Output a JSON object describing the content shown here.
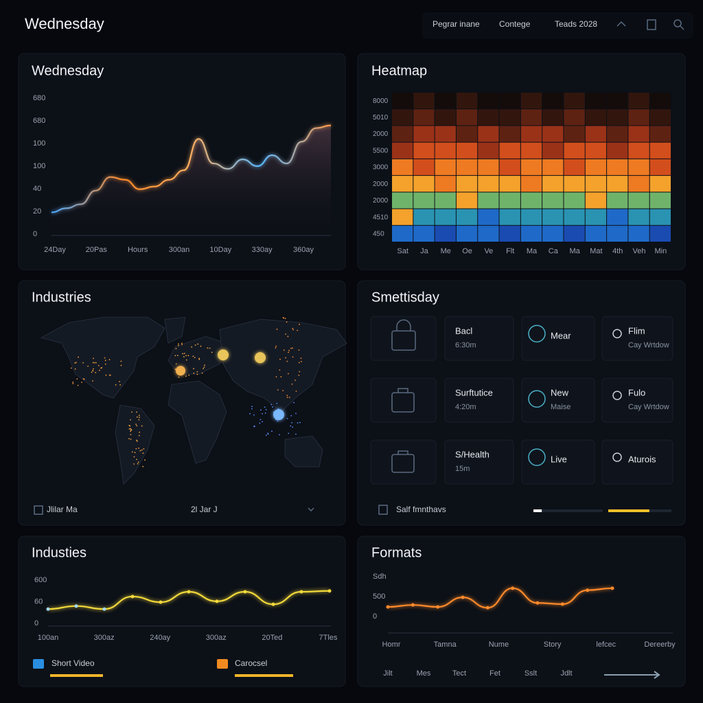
{
  "header": {
    "title": "Wednesday",
    "nav": [
      "Pegrar inane",
      "Contege",
      "Teads 2028"
    ]
  },
  "trend": {
    "type": "area",
    "title": "Wednesday",
    "y_labels": [
      "680",
      "680",
      "100",
      "100",
      "40",
      "20",
      "0"
    ],
    "x_labels": [
      "24Day",
      "20Pas",
      "Hours",
      "300an",
      "10Day",
      "330ay",
      "360ay"
    ],
    "ylim": [
      0,
      100
    ],
    "colors": [
      "#4aa8ff",
      "#ff8a2a",
      "#ffb060",
      "#5ab8ff",
      "#ff9a4a"
    ],
    "values": [
      16,
      19,
      22,
      32,
      42,
      40,
      33,
      35,
      40,
      47,
      70,
      52,
      48,
      55,
      50,
      58,
      52,
      68,
      78,
      80
    ]
  },
  "heatmap": {
    "type": "heatmap",
    "title": "Heatmap",
    "y_labels": [
      "8000",
      "5010",
      "2000",
      "5500",
      "3000",
      "2000",
      "2000",
      "4510",
      "450"
    ],
    "x_labels": [
      "Sat",
      "Ja",
      "Me",
      "Oe",
      "Ve",
      "Flt",
      "Ma",
      "Ca",
      "Ma",
      "Mat",
      "4th",
      "Veh",
      "Min"
    ],
    "colors": [
      "#140c0a",
      "#32160e",
      "#5e2212",
      "#9a3218",
      "#d24e1c",
      "#ee7a22",
      "#f4a22c",
      "#6fb36b",
      "#2a93b2",
      "#1f6ac8",
      "#1a4bb0"
    ],
    "values": [
      [
        0,
        1,
        0,
        1,
        0,
        0,
        1,
        0,
        1,
        0,
        0,
        1,
        0
      ],
      [
        1,
        2,
        1,
        2,
        1,
        1,
        2,
        1,
        2,
        1,
        1,
        2,
        1
      ],
      [
        2,
        3,
        3,
        2,
        3,
        2,
        3,
        3,
        2,
        3,
        2,
        3,
        2
      ],
      [
        3,
        4,
        4,
        4,
        3,
        4,
        4,
        3,
        4,
        4,
        3,
        4,
        4
      ],
      [
        5,
        4,
        5,
        5,
        5,
        4,
        5,
        5,
        4,
        5,
        5,
        5,
        4
      ],
      [
        6,
        6,
        5,
        6,
        6,
        6,
        5,
        6,
        6,
        6,
        6,
        5,
        6
      ],
      [
        7,
        7,
        7,
        6,
        7,
        7,
        7,
        7,
        7,
        6,
        7,
        7,
        7
      ],
      [
        6,
        8,
        8,
        8,
        9,
        8,
        8,
        8,
        8,
        8,
        9,
        8,
        8
      ],
      [
        9,
        9,
        10,
        9,
        9,
        10,
        9,
        9,
        10,
        9,
        9,
        9,
        10
      ]
    ]
  },
  "map": {
    "title": "Industries",
    "footer": [
      "Jlilar Ma",
      "2l Jar J"
    ]
  },
  "tiles": {
    "title": "Smettisday",
    "items": [
      {
        "label": "Bacl",
        "sub": "6:30m"
      },
      {
        "label": "Mear"
      },
      {
        "label": "Flim",
        "sub": "Cay Wrtdow"
      },
      {
        "label": "Surftutice",
        "sub": "4:20m"
      },
      {
        "label": "New",
        "sub": "Maise"
      },
      {
        "label": "Fulo",
        "sub": "Cay Wrtdow"
      },
      {
        "label": "S/Health",
        "sub": "15m"
      },
      {
        "label": "Live"
      },
      {
        "label": "Aturois"
      }
    ],
    "footer": "Salf fmnthavs",
    "progress": [
      12,
      65
    ]
  },
  "industies": {
    "type": "line",
    "title": "Industies",
    "y_labels": [
      "600",
      "60",
      "0"
    ],
    "x_labels": [
      "100an",
      "300az",
      "240ay",
      "300az",
      "20Ted",
      "7Tles"
    ],
    "ylim": [
      0,
      100
    ],
    "color": "#f2d93a",
    "values": [
      33,
      40,
      33,
      62,
      49,
      73,
      51,
      73,
      44,
      73,
      75
    ],
    "legend": [
      "Short Video",
      "Carocsel"
    ]
  },
  "formats": {
    "type": "line",
    "title": "Formats",
    "y_labels": [
      "Sdh",
      "500",
      "0"
    ],
    "x_labels": [
      "Homr",
      "Tamna",
      "Nume",
      "Story",
      "lefcec",
      "Dereerby"
    ],
    "ylim": [
      0,
      100
    ],
    "color": "#ff8a2a",
    "values": [
      24,
      29,
      24,
      48,
      22,
      71,
      34,
      31,
      66,
      71
    ],
    "bottom_labels": [
      "Jilt",
      "Mes",
      "Tect",
      "Fet",
      "Sslt",
      "Jdlt"
    ]
  }
}
